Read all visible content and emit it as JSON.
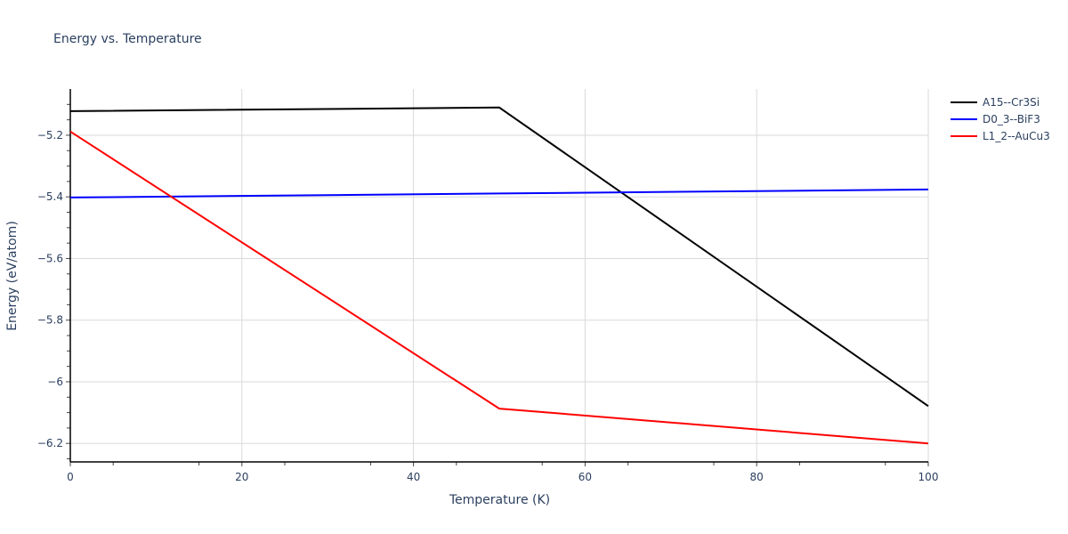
{
  "chart_data": {
    "type": "line",
    "title": "Energy vs. Temperature",
    "xlabel": "Temperature (K)",
    "ylabel": "Energy (eV/atom)",
    "xlim": [
      0,
      100
    ],
    "ylim": [
      -6.26,
      -5.05
    ],
    "x_ticks": [
      0,
      20,
      40,
      60,
      80,
      100
    ],
    "y_ticks": [
      -5.2,
      -5.4,
      -5.6,
      -5.8,
      -6,
      -6.2
    ],
    "grid": true,
    "legend_position": "right",
    "series": [
      {
        "name": "A15--Cr3Si",
        "color": "#000000",
        "x": [
          0,
          50,
          100
        ],
        "y": [
          -5.122,
          -5.11,
          -6.079
        ]
      },
      {
        "name": "D0_3--BiF3",
        "color": "#0000ff",
        "x": [
          0,
          50,
          100
        ],
        "y": [
          -5.402,
          -5.389,
          -5.376
        ]
      },
      {
        "name": "L1_2--AuCu3",
        "color": "#ff0000",
        "x": [
          0,
          50,
          100
        ],
        "y": [
          -5.188,
          -6.087,
          -6.2
        ]
      }
    ]
  },
  "labels": {
    "title": "Energy vs. Temperature",
    "xlabel": "Temperature (K)",
    "ylabel": "Energy (eV/atom)",
    "x_ticks": [
      "0",
      "20",
      "40",
      "60",
      "80",
      "100"
    ],
    "y_ticks": [
      "−5.2",
      "−5.4",
      "−5.6",
      "−5.8",
      "−6",
      "−6.2"
    ]
  },
  "legend": [
    {
      "label": "A15--Cr3Si",
      "color": "#000000"
    },
    {
      "label": "D0_3--BiF3",
      "color": "#0000ff"
    },
    {
      "label": "L1_2--AuCu3",
      "color": "#ff0000"
    }
  ]
}
